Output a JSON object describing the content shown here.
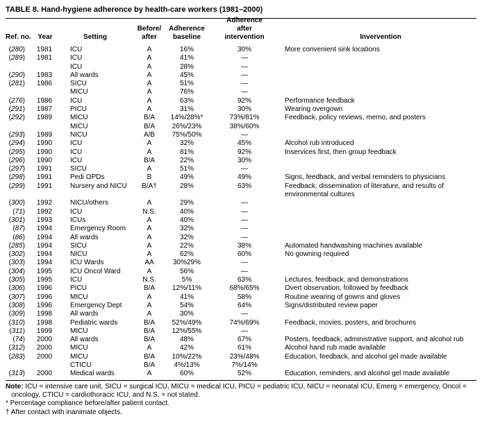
{
  "title": "TABLE 8. Hand-hygiene adherence by health-care workers (1981–2000)",
  "headers": {
    "ref": "Ref. no.",
    "year": "Year",
    "setting": "Setting",
    "before_after_1": "Before/",
    "before_after_2": "after",
    "baseline_1": "Adherence",
    "baseline_2": "baseline",
    "after_1": "Adherence",
    "after_2": "after",
    "after_3": "intervention",
    "intervention": "Invervention"
  },
  "rows": [
    {
      "ref": "280",
      "year": "1981",
      "setting": "ICU",
      "ba": "A",
      "base": "16%",
      "after": "30%",
      "int": "More convenient sink locations"
    },
    {
      "ref": "289",
      "year": "1981",
      "setting": "ICU",
      "ba": "A",
      "base": "41%",
      "after": "—",
      "int": ""
    },
    {
      "ref": "",
      "year": "",
      "setting": "ICU",
      "ba": "A",
      "base": "28%",
      "after": "—",
      "int": ""
    },
    {
      "ref": "290",
      "year": "1983",
      "setting": "All wards",
      "ba": "A",
      "base": "45%",
      "after": "—",
      "int": ""
    },
    {
      "ref": "281",
      "year": "1986",
      "setting": "SICU",
      "ba": "A",
      "base": "51%",
      "after": "—",
      "int": ""
    },
    {
      "ref": "",
      "year": "",
      "setting": "MICU",
      "ba": "A",
      "base": "76%",
      "after": "—",
      "int": ""
    },
    {
      "ref": "276",
      "year": "1986",
      "setting": "ICU",
      "ba": "A",
      "base": "63%",
      "after": "92%",
      "int": "Performance feedback"
    },
    {
      "ref": "291",
      "year": "1987",
      "setting": "PICU",
      "ba": "A",
      "base": "31%",
      "after": "30%",
      "int": "Wearing overgown"
    },
    {
      "ref": "292",
      "year": "1989",
      "setting": "MICU",
      "ba": "B/A",
      "base": "14%/28%*",
      "after": "73%/81%",
      "int": "Feedback, policy reviews, memo, and posters"
    },
    {
      "ref": "",
      "year": "",
      "setting": "MICU",
      "ba": "B/A",
      "base": "26%/23%",
      "after": "38%/60%",
      "int": ""
    },
    {
      "ref": "293",
      "year": "1989",
      "setting": "NICU",
      "ba": "A/B",
      "base": "75%/50%",
      "after": "—",
      "int": ""
    },
    {
      "ref": "294",
      "year": "1990",
      "setting": "ICU",
      "ba": "A",
      "base": "32%",
      "after": "45%",
      "int": "Alcohol rub introduced"
    },
    {
      "ref": "295",
      "year": "1990",
      "setting": "ICU",
      "ba": "A",
      "base": "81%",
      "after": "92%",
      "int": "Inservices first, then group feedback"
    },
    {
      "ref": "296",
      "year": "1990",
      "setting": "ICU",
      "ba": "B/A",
      "base": "22%",
      "after": "30%",
      "int": ""
    },
    {
      "ref": "297",
      "year": "1991",
      "setting": "SICU",
      "ba": "A",
      "base": "51%",
      "after": "—",
      "int": ""
    },
    {
      "ref": "298",
      "year": "1991",
      "setting": "Pedi OPDs",
      "ba": "B",
      "base": "49%",
      "after": "49%",
      "int": "Signs, feedback, and verbal reminders to physicians"
    },
    {
      "ref": "299",
      "year": "1991",
      "setting": "Nursery and NICU",
      "ba": "B/A†",
      "base": "28%",
      "after": "63%",
      "int": "Feedback, dissemination of literature, and results of",
      "int2": "environmental cultures"
    },
    {
      "ref": "300",
      "year": "1992",
      "setting": "NICU/others",
      "ba": "A",
      "base": "29%",
      "after": "—",
      "int": ""
    },
    {
      "ref": "71",
      "year": "1992",
      "setting": "ICU",
      "ba": "N.S.",
      "base": "40%",
      "after": "—",
      "int": ""
    },
    {
      "ref": "301",
      "year": "1993",
      "setting": "ICUs",
      "ba": "A",
      "base": "40%",
      "after": "—",
      "int": ""
    },
    {
      "ref": "87",
      "year": "1994",
      "setting": "Emergency Room",
      "ba": "A",
      "base": "32%",
      "after": "—",
      "int": ""
    },
    {
      "ref": "86",
      "year": "1994",
      "setting": "All wards",
      "ba": "A",
      "base": "32%",
      "after": "—",
      "int": ""
    },
    {
      "ref": "285",
      "year": "1994",
      "setting": "SICU",
      "ba": "A",
      "base": "22%",
      "after": "38%",
      "int": "Automated handwashing machines available"
    },
    {
      "ref": "302",
      "year": "1994",
      "setting": "NICU",
      "ba": "A",
      "base": "62%",
      "after": "60%",
      "int": "No gowning required"
    },
    {
      "ref": "303",
      "year": "1994",
      "setting": "ICU Wards",
      "ba": "AA",
      "base": "30%29%",
      "after": "—",
      "int": ""
    },
    {
      "ref": "304",
      "year": "1995",
      "setting": "ICU Oncol Ward",
      "ba": "A",
      "base": "56%",
      "after": "—",
      "int": ""
    },
    {
      "ref": "305",
      "year": "1995",
      "setting": "ICU",
      "ba": "N.S.",
      "base": "5%",
      "after": "63%",
      "int": "Lectures, feedback, and demonstrations"
    },
    {
      "ref": "306",
      "year": "1996",
      "setting": "PICU",
      "ba": "B/A",
      "base": "12%/11%",
      "after": "68%/65%",
      "int": "Overt observation, followed by feedback"
    },
    {
      "ref": "307",
      "year": "1996",
      "setting": "MICU",
      "ba": "A",
      "base": "41%",
      "after": "58%",
      "int": "Routine wearing of gowns and gloves"
    },
    {
      "ref": "308",
      "year": "1996",
      "setting": "Emergency Dept",
      "ba": "A",
      "base": "54%",
      "after": "64%",
      "int": "Signs/distributed review paper"
    },
    {
      "ref": "309",
      "year": "1998",
      "setting": "All wards",
      "ba": "A",
      "base": "30%",
      "after": "—",
      "int": ""
    },
    {
      "ref": "310",
      "year": "1998",
      "setting": "Pediatric wards",
      "ba": "B/A",
      "base": "52%/49%",
      "after": "74%/69%",
      "int": "Feedback, movies, posters, and brochures"
    },
    {
      "ref": "311",
      "year": "1999",
      "setting": "MICU",
      "ba": "B/A",
      "base": "12%/55%",
      "after": "—",
      "int": ""
    },
    {
      "ref": "74",
      "year": "2000",
      "setting": "All wards",
      "ba": "B/A",
      "base": "48%",
      "after": "67%",
      "int": "Posters, feedback, administrative support, and alcohol rub"
    },
    {
      "ref": "312",
      "year": "2000",
      "setting": "MICU",
      "ba": "A",
      "base": "42%",
      "after": "61%",
      "int": "Alcohol hand rub made available"
    },
    {
      "ref": "283",
      "year": "2000",
      "setting": "MICU",
      "ba": "B/A",
      "base": "10%/22%",
      "after": "23%/48%",
      "int": "Education, feedback, and alcohol gel made available"
    },
    {
      "ref": "",
      "year": "",
      "setting": "CTICU",
      "ba": "B/A",
      "base": "4%/13%",
      "after": "7%/14%",
      "int": ""
    },
    {
      "ref": "313",
      "year": "2000",
      "setting": "Medical wards",
      "ba": "A",
      "base": "60%",
      "after": "52%",
      "int": "Education, reminders, and alcohol gel made available"
    }
  ],
  "notes": {
    "note_label": "Note:",
    "note_text": " ICU = intensive care unit, SICU = surgical ICU, MICU = medical ICU, PICU = pediatric ICU, NICU = neonatal ICU, Emerg = emergency, Oncol =",
    "note_text_2": "oncology, CTICU = cardiothoracic ICU, and N.S. = not stated.",
    "footnote_star_mark": "*",
    "footnote_star": " Percentage compliance before/after patient contact.",
    "footnote_dagger_mark": "†",
    "footnote_dagger": " After contact with inanimate objects."
  }
}
